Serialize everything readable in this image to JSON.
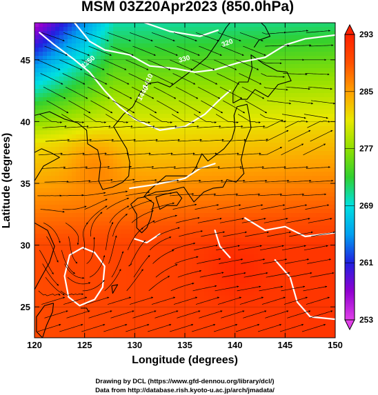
{
  "title": "MSM 03Z20Apr2023 (850.0hPa)",
  "x_axis": {
    "label": "Longitude (degrees)",
    "range": [
      120,
      150
    ],
    "ticks": [
      120,
      125,
      130,
      135,
      140,
      145,
      150
    ]
  },
  "y_axis": {
    "label": "Latitude  (degrees)",
    "range": [
      22.5,
      48
    ],
    "ticks": [
      25,
      30,
      35,
      40,
      45
    ]
  },
  "colorbar": {
    "ticks": [
      253,
      261,
      269,
      277,
      285,
      293
    ],
    "min": 253,
    "max": 293,
    "colors": [
      "#e040e8",
      "#9000d0",
      "#2020e0",
      "#00a0f0",
      "#00e0e0",
      "#30d030",
      "#90e000",
      "#e8e800",
      "#ffa000",
      "#ff5000",
      "#ff2000"
    ]
  },
  "contour_labels": [
    "320",
    "330",
    "1410",
    "1440",
    "1350"
  ],
  "credits": {
    "line1": "Drawing by DCL (https://www.gfd-dennou.org/library/dcl/)",
    "line2": "Data from http://database.rish.kyoto-u.ac.jp/arch/jmadata/"
  },
  "colors": {
    "contour": "#ffffff",
    "coast": "#000000",
    "arrows": "#000000"
  }
}
